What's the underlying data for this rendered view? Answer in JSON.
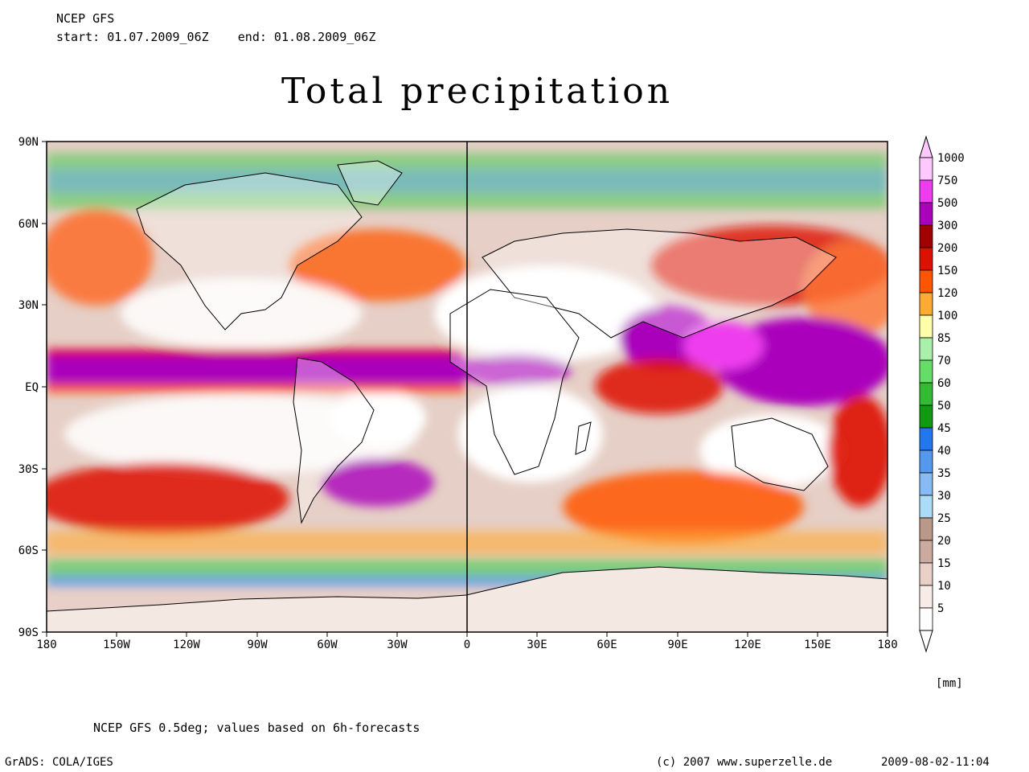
{
  "header": {
    "model": "NCEP GFS",
    "period": "start: 01.07.2009_06Z    end: 01.08.2009_06Z"
  },
  "title": "Total precipitation",
  "axes": {
    "lat_labels": [
      "90N",
      "60N",
      "30N",
      "EQ",
      "30S",
      "60S",
      "90S"
    ],
    "lon_labels": [
      "180",
      "150W",
      "120W",
      "90W",
      "60W",
      "30W",
      "0",
      "30E",
      "60E",
      "90E",
      "120E",
      "150E",
      "180"
    ]
  },
  "colorbar": {
    "unit": "[mm]",
    "levels": [
      {
        "value": "1000",
        "color": "#ffc8ff"
      },
      {
        "value": "750",
        "color": "#ee3cee"
      },
      {
        "value": "500",
        "color": "#aa00bb"
      },
      {
        "value": "300",
        "color": "#a00000"
      },
      {
        "value": "200",
        "color": "#dd1100"
      },
      {
        "value": "150",
        "color": "#ff5500"
      },
      {
        "value": "120",
        "color": "#ffaa33"
      },
      {
        "value": "100",
        "color": "#ffffaa"
      },
      {
        "value": "85",
        "color": "#aaf0aa"
      },
      {
        "value": "70",
        "color": "#66dd66"
      },
      {
        "value": "60",
        "color": "#33bb33"
      },
      {
        "value": "50",
        "color": "#119911"
      },
      {
        "value": "45",
        "color": "#2277ee"
      },
      {
        "value": "40",
        "color": "#5599ee"
      },
      {
        "value": "35",
        "color": "#88bbf5"
      },
      {
        "value": "30",
        "color": "#aaddf5"
      },
      {
        "value": "25",
        "color": "#bb9988"
      },
      {
        "value": "20",
        "color": "#ccaaa0"
      },
      {
        "value": "15",
        "color": "#e8d0c8"
      },
      {
        "value": "10",
        "color": "#f8ece6"
      },
      {
        "value": "5",
        "color": "#ffffff"
      }
    ]
  },
  "footer": {
    "note": "NCEP GFS 0.5deg; values based on 6h-forecasts",
    "software": "GrADS: COLA/IGES",
    "copyright": "(c) 2007 www.superzelle.de",
    "timestamp": "2009-08-02-11:04"
  }
}
